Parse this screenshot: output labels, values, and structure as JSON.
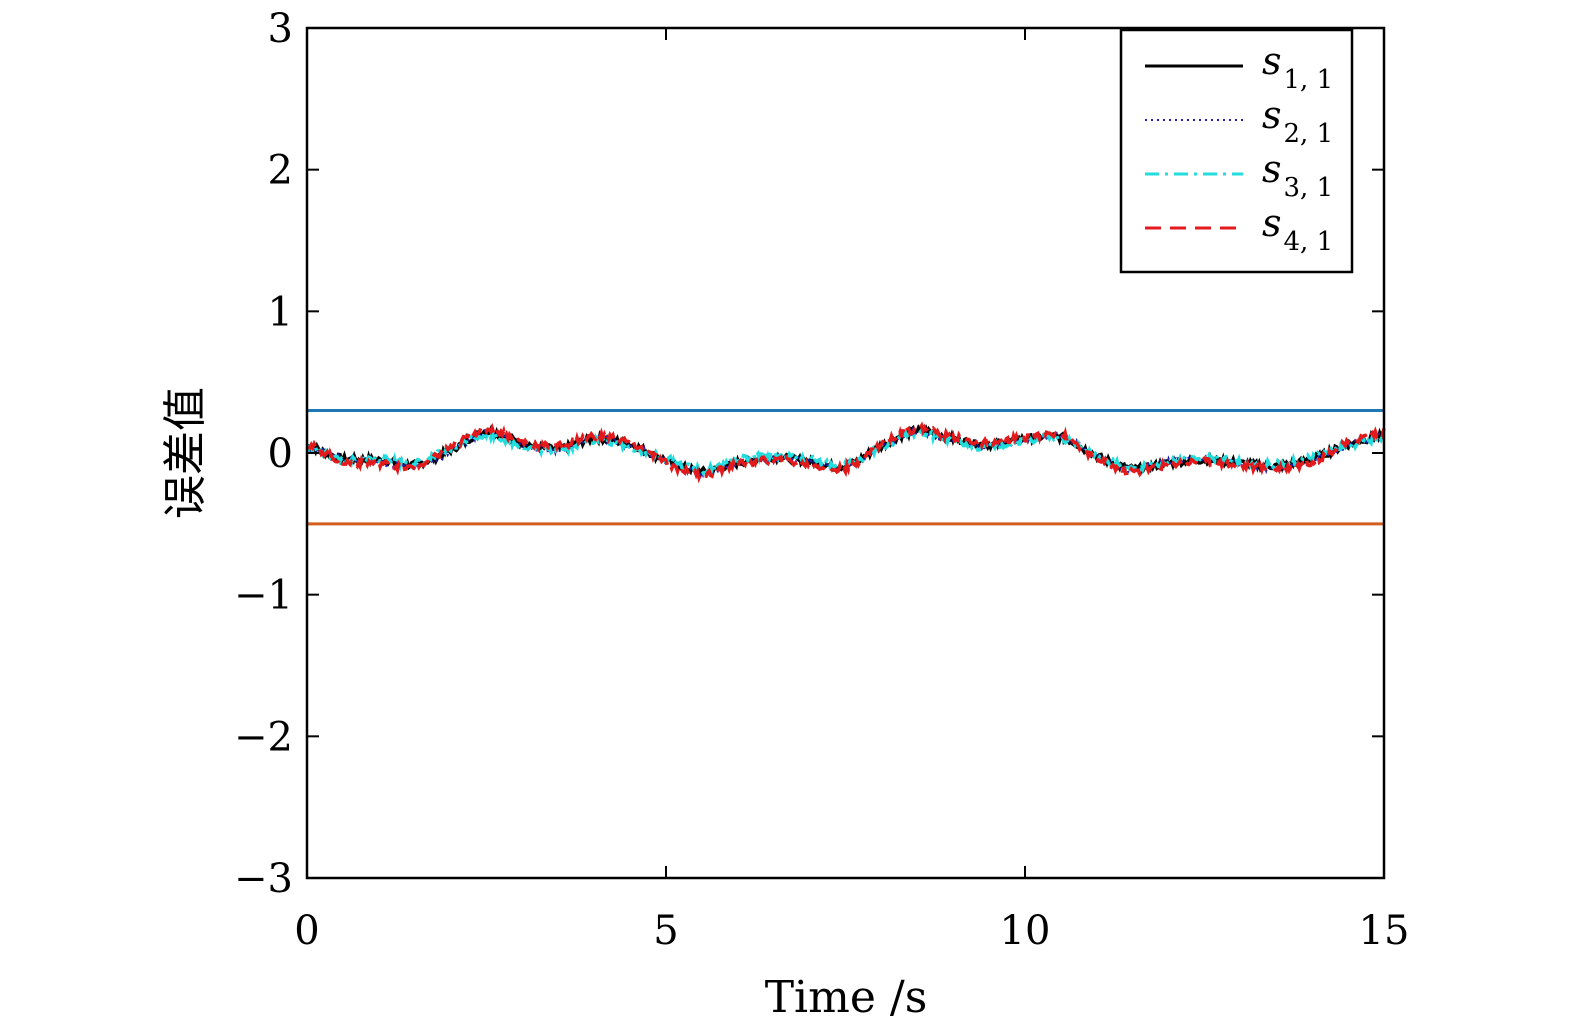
{
  "chart_data": {
    "type": "line",
    "title": "",
    "xlabel": "Time /s",
    "ylabel": "误差值",
    "xlim": [
      0,
      15
    ],
    "ylim": [
      -3,
      3
    ],
    "x_ticks": [
      0,
      5,
      10,
      15
    ],
    "x_tick_labels": [
      "0",
      "5",
      "10",
      "15"
    ],
    "y_ticks": [
      -3,
      -2,
      -1,
      0,
      1,
      2,
      3
    ],
    "y_tick_labels": [
      "−3",
      "−2",
      "−1",
      "0",
      "1",
      "2",
      "3"
    ],
    "grid": false,
    "legend_position": "top-right",
    "x": [
      0,
      0.5,
      1.0,
      1.5,
      2.0,
      2.5,
      3.0,
      3.5,
      4.0,
      4.5,
      5.0,
      5.5,
      6.0,
      6.5,
      7.0,
      7.5,
      8.0,
      8.5,
      9.0,
      9.5,
      10.0,
      10.5,
      11.0,
      11.5,
      12.0,
      12.5,
      13.0,
      13.5,
      14.0,
      14.5,
      15.0
    ],
    "series": [
      {
        "name": "s",
        "subscript": "1, 1",
        "color": "#000000",
        "dash": "solid",
        "values": [
          0.05,
          -0.04,
          -0.05,
          -0.08,
          0.02,
          0.15,
          0.07,
          0.03,
          0.1,
          0.06,
          -0.05,
          -0.13,
          -0.07,
          -0.03,
          -0.06,
          -0.09,
          0.05,
          0.16,
          0.1,
          0.06,
          0.1,
          0.11,
          -0.02,
          -0.11,
          -0.07,
          -0.05,
          -0.07,
          -0.09,
          -0.04,
          0.06,
          0.12
        ]
      },
      {
        "name": "s",
        "subscript": "2, 1",
        "color": "#1f1fb4",
        "dash": "dotted",
        "values": [
          0.03,
          -0.03,
          -0.06,
          -0.09,
          0.01,
          0.14,
          0.06,
          0.02,
          0.11,
          0.05,
          -0.06,
          -0.14,
          -0.06,
          -0.04,
          -0.05,
          -0.1,
          0.04,
          0.15,
          0.09,
          0.05,
          0.09,
          0.12,
          -0.03,
          -0.12,
          -0.06,
          -0.04,
          -0.08,
          -0.1,
          -0.05,
          0.05,
          0.13
        ]
      },
      {
        "name": "s",
        "subscript": "3, 1",
        "color": "#22dddd",
        "dash": "dashdot",
        "values": [
          0.04,
          -0.05,
          -0.04,
          -0.07,
          0.03,
          0.13,
          0.05,
          0.02,
          0.09,
          0.04,
          -0.04,
          -0.12,
          -0.05,
          -0.02,
          -0.05,
          -0.08,
          0.04,
          0.14,
          0.08,
          0.04,
          0.08,
          0.1,
          -0.02,
          -0.1,
          -0.06,
          -0.03,
          -0.06,
          -0.08,
          -0.03,
          0.05,
          0.11
        ]
      },
      {
        "name": "s",
        "subscript": "4, 1",
        "color": "#e31a1c",
        "dash": "dashed",
        "values": [
          0.06,
          -0.06,
          -0.07,
          -0.1,
          0.04,
          0.17,
          0.08,
          0.05,
          0.12,
          0.07,
          -0.07,
          -0.15,
          -0.08,
          -0.05,
          -0.08,
          -0.11,
          0.06,
          0.17,
          0.11,
          0.07,
          0.11,
          0.13,
          -0.04,
          -0.13,
          -0.08,
          -0.06,
          -0.09,
          -0.11,
          -0.06,
          0.07,
          0.15
        ]
      }
    ],
    "bound_lines": [
      {
        "y": 0.3,
        "color": "#1f77b4"
      },
      {
        "y": -0.5,
        "color": "#d35f1f"
      }
    ]
  }
}
